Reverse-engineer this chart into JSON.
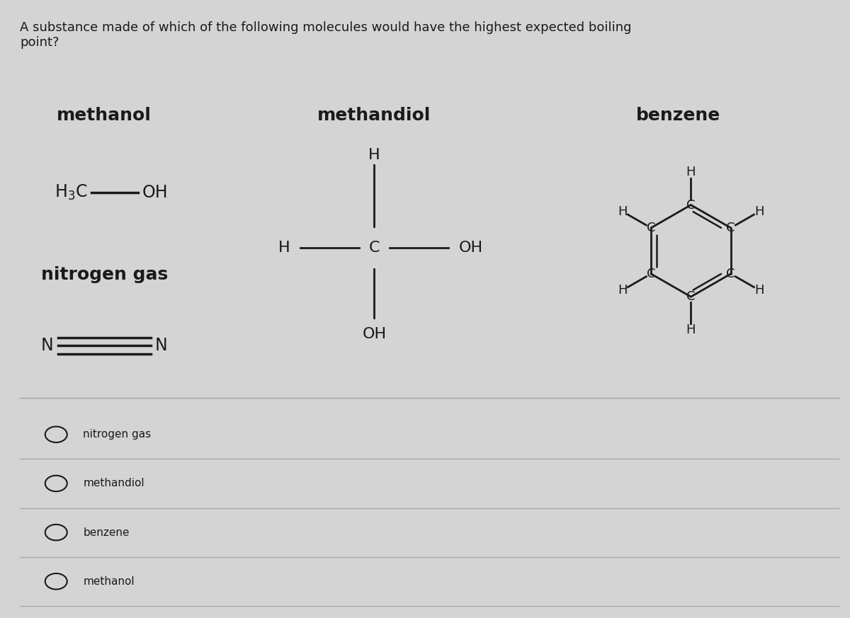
{
  "bg_color": "#d4d4d4",
  "question_text": "A substance made of which of the following molecules would have the highest expected boiling\npoint?",
  "question_fontsize": 13,
  "options": [
    "nitrogen gas",
    "methandiol",
    "benzene",
    "methanol"
  ],
  "text_color": "#1a1a1a",
  "line_color": "#aaaaaa"
}
